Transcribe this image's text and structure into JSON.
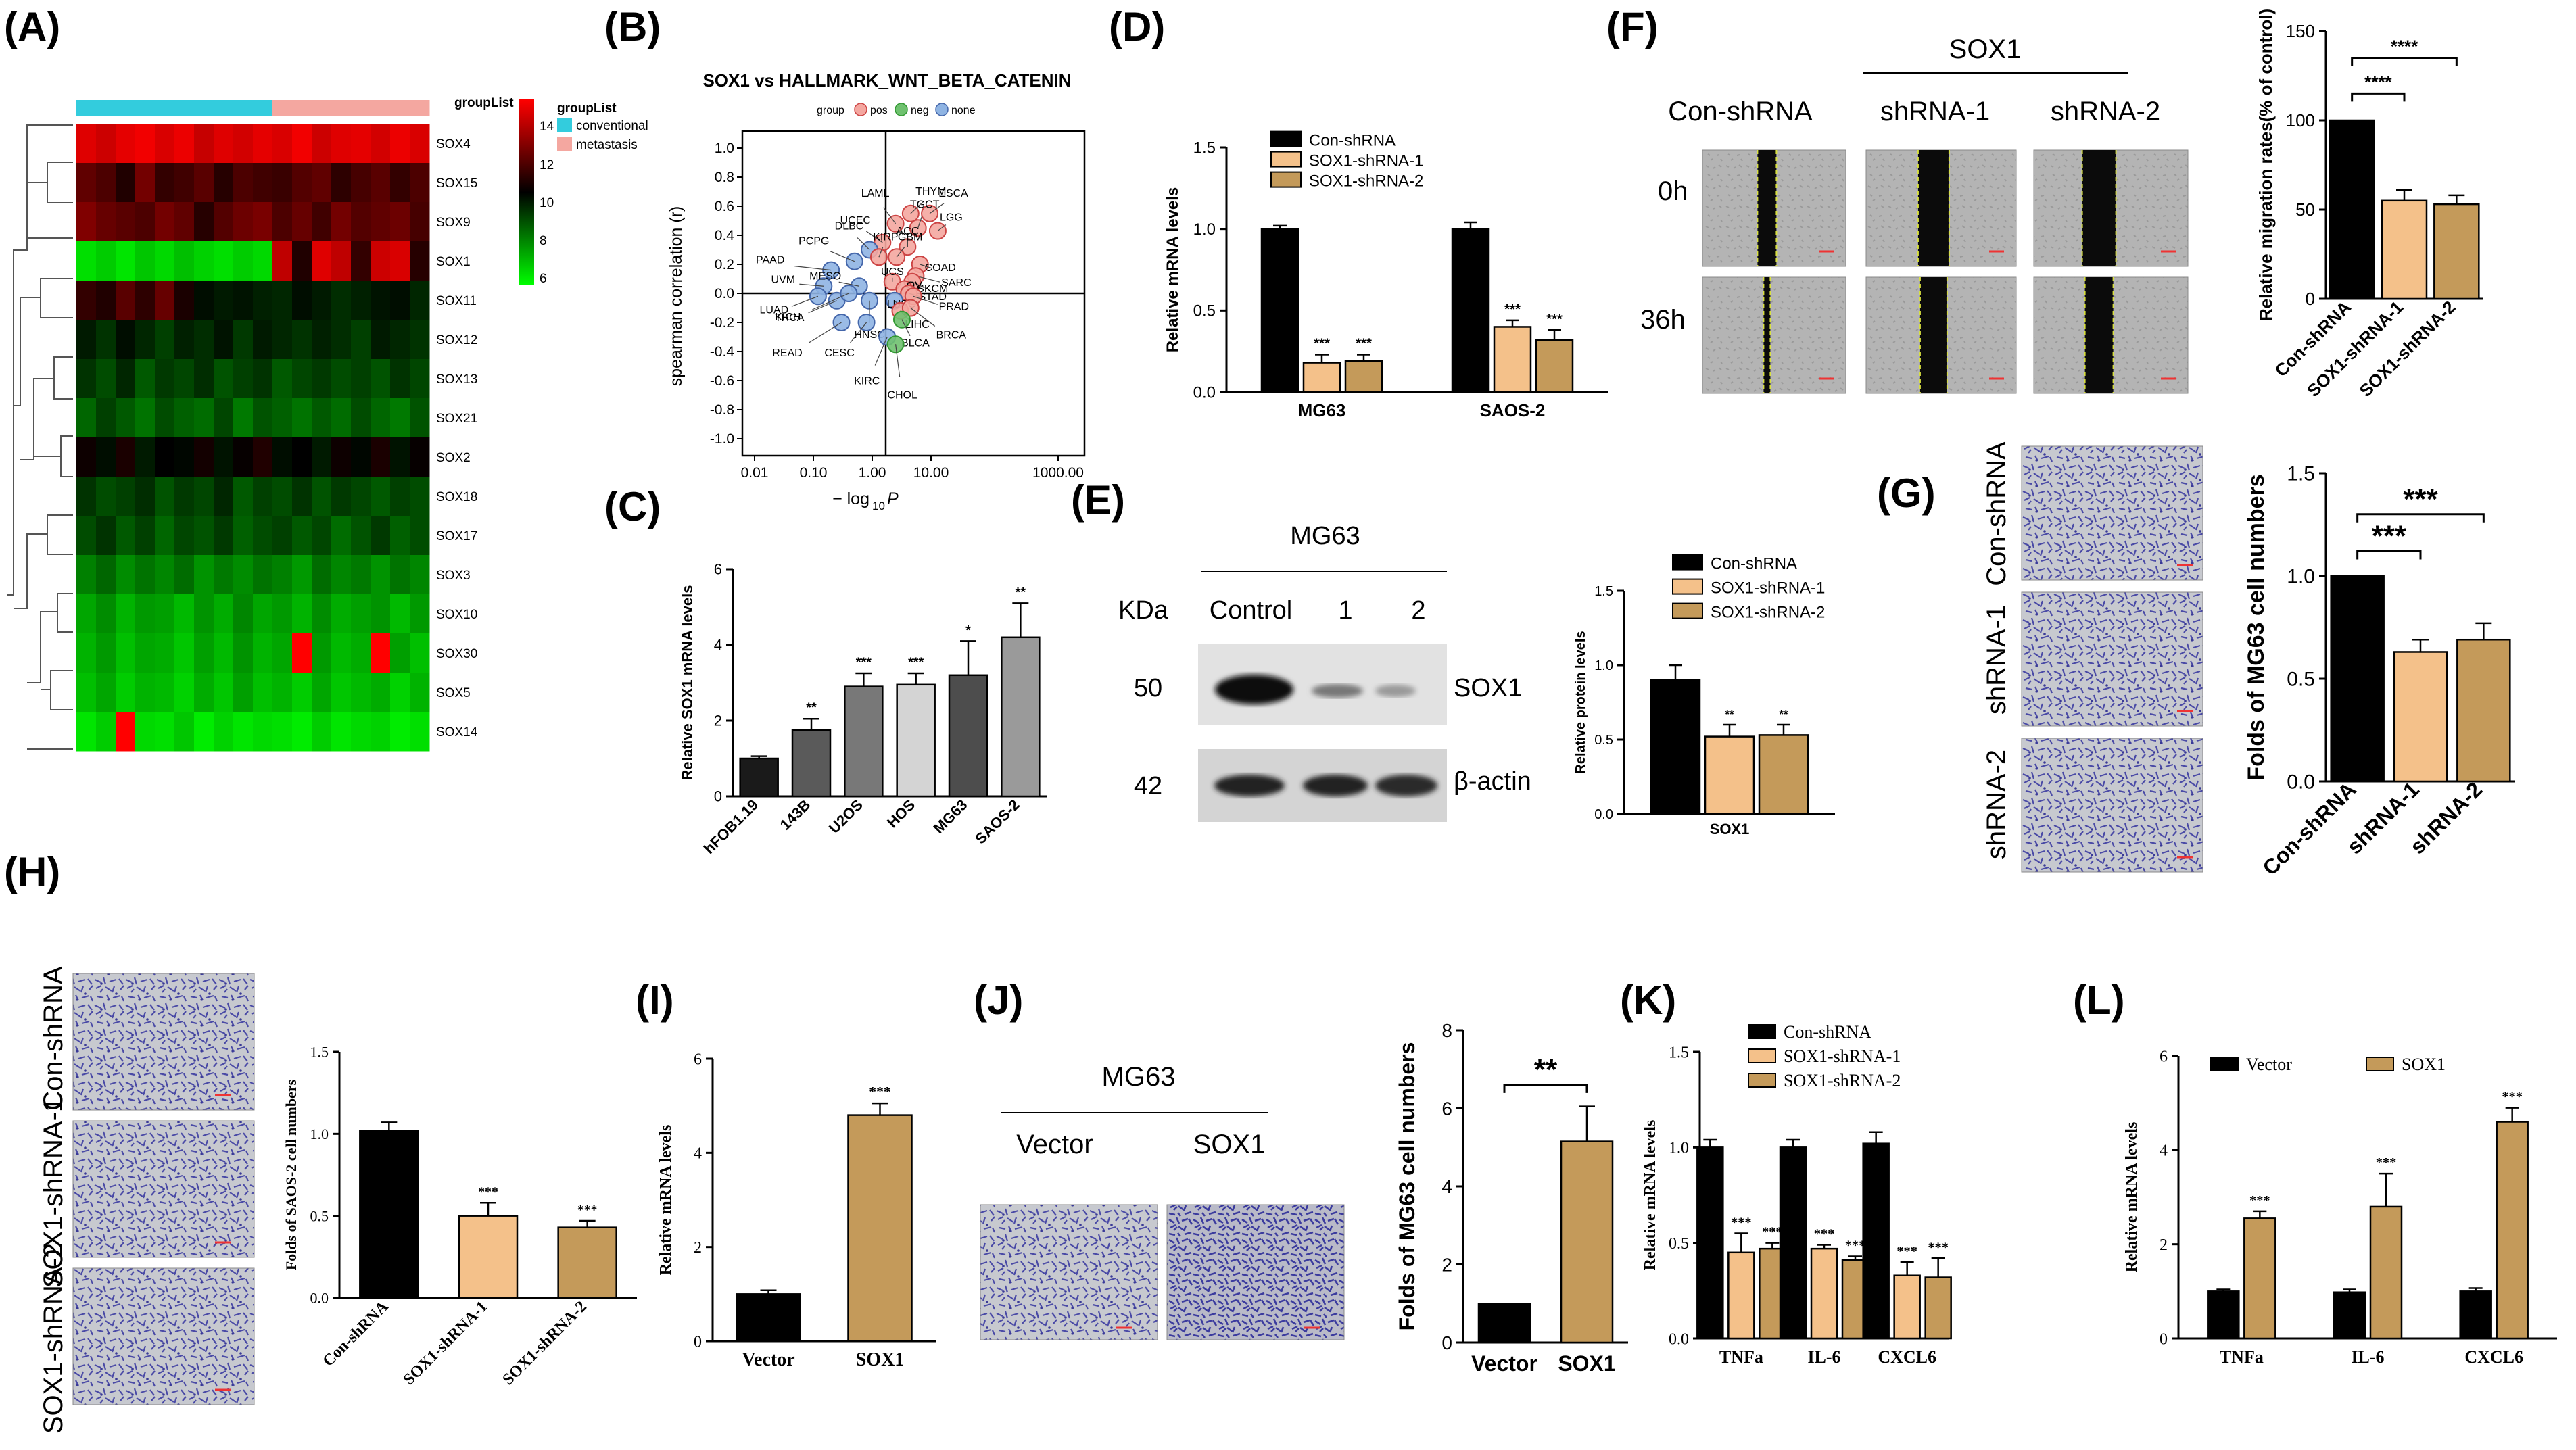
{
  "panels": {
    "A": {
      "label": "(A)"
    },
    "B": {
      "label": "(B)"
    },
    "C": {
      "label": "(C)"
    },
    "D": {
      "label": "(D)"
    },
    "E": {
      "label": "(E)"
    },
    "F": {
      "label": "(F)"
    },
    "G": {
      "label": "(G)"
    },
    "H": {
      "label": "(H)"
    },
    "I": {
      "label": "(I)"
    },
    "J": {
      "label": "(J)"
    },
    "K": {
      "label": "(K)"
    },
    "L": {
      "label": "(L)"
    }
  },
  "heatmap": {
    "group_title": "groupList",
    "legend_title": "groupList",
    "legend_conventional": "conventional",
    "legend_metastasis": "metastasis",
    "colors": {
      "low": "#00ff00",
      "mid": "#000000",
      "high": "#ff0000",
      "conventional": "#33ccdd",
      "metastasis": "#f4a7a0"
    },
    "scale_ticks": [
      "14",
      "12",
      "10",
      "8",
      "6"
    ],
    "rows": [
      "SOX4",
      "SOX15",
      "SOX9",
      "SOX1",
      "SOX11",
      "SOX12",
      "SOX13",
      "SOX21",
      "SOX2",
      "SOX18",
      "SOX17",
      "SOX3",
      "SOX10",
      "SOX30",
      "SOX5",
      "SOX14"
    ],
    "n_conventional": 10,
    "n_metastasis": 8,
    "matrix": [
      [
        13.5,
        13.2,
        13.6,
        13.8,
        13.4,
        13.7,
        13.1,
        13.5,
        13.3,
        13.6,
        13.4,
        13.8,
        13.2,
        13.5,
        13.6,
        13.3,
        13.7,
        13.4
      ],
      [
        11.5,
        11.2,
        10.5,
        11.8,
        10.8,
        11.0,
        11.4,
        10.6,
        11.2,
        11.0,
        10.9,
        11.3,
        11.5,
        10.7,
        11.1,
        11.4,
        10.8,
        11.2
      ],
      [
        12.0,
        11.6,
        11.4,
        11.2,
        11.8,
        11.5,
        10.6,
        11.3,
        11.7,
        11.9,
        11.2,
        11.6,
        11.0,
        11.8,
        11.3,
        11.5,
        11.7,
        11.1
      ],
      [
        6.5,
        6.8,
        6.4,
        6.9,
        6.6,
        7.0,
        6.7,
        6.5,
        6.8,
        6.6,
        13.0,
        10.5,
        13.5,
        13.0,
        10.8,
        13.2,
        13.4,
        10.6
      ],
      [
        10.8,
        10.5,
        11.4,
        10.7,
        11.6,
        10.4,
        9.8,
        9.6,
        9.7,
        9.5,
        9.4,
        9.8,
        9.6,
        9.3,
        9.5,
        9.7,
        9.8,
        9.4
      ],
      [
        9.6,
        9.2,
        9.8,
        9.4,
        9.0,
        9.5,
        9.3,
        9.7,
        9.1,
        9.6,
        9.4,
        9.2,
        9.5,
        9.3,
        9.0,
        9.6,
        9.4,
        9.2
      ],
      [
        9.2,
        8.8,
        9.4,
        8.6,
        9.1,
        8.9,
        9.3,
        8.7,
        9.0,
        9.2,
        8.6,
        8.9,
        9.1,
        8.8,
        9.0,
        8.7,
        9.2,
        8.9
      ],
      [
        8.4,
        9.0,
        8.6,
        8.2,
        8.8,
        8.5,
        8.3,
        8.9,
        8.1,
        8.7,
        8.5,
        8.2,
        8.6,
        8.3,
        8.8,
        8.4,
        8.1,
        8.7
      ],
      [
        10.2,
        9.8,
        10.4,
        9.6,
        10.0,
        9.9,
        10.3,
        9.7,
        10.1,
        10.5,
        9.8,
        10.0,
        9.6,
        10.2,
        9.9,
        10.4,
        9.7,
        10.1
      ],
      [
        9.2,
        8.8,
        9.0,
        9.3,
        8.7,
        9.1,
        8.9,
        9.4,
        8.6,
        9.0,
        8.8,
        9.2,
        8.7,
        9.1,
        8.9,
        8.6,
        9.0,
        8.8
      ],
      [
        8.8,
        9.2,
        8.6,
        9.0,
        8.4,
        8.9,
        8.7,
        9.1,
        8.5,
        8.8,
        9.0,
        8.6,
        8.9,
        8.3,
        8.7,
        9.1,
        8.5,
        8.8
      ],
      [
        8.0,
        8.4,
        7.8,
        8.2,
        7.9,
        8.3,
        7.7,
        8.1,
        7.8,
        8.2,
        8.0,
        7.6,
        8.3,
        7.9,
        8.1,
        7.7,
        8.2,
        7.9
      ],
      [
        7.4,
        7.8,
        7.2,
        7.6,
        7.5,
        7.1,
        7.7,
        7.3,
        7.9,
        7.4,
        7.6,
        7.2,
        7.8,
        7.3,
        7.5,
        7.7,
        7.1,
        7.6
      ],
      [
        7.2,
        7.6,
        7.0,
        7.4,
        7.3,
        6.9,
        7.5,
        7.1,
        7.7,
        7.2,
        7.4,
        14.5,
        7.6,
        7.1,
        7.3,
        14.5,
        7.5,
        7.0
      ],
      [
        7.0,
        7.4,
        6.8,
        7.2,
        7.1,
        6.7,
        7.3,
        6.9,
        7.5,
        7.0,
        7.2,
        6.8,
        7.4,
        6.9,
        7.1,
        7.3,
        6.7,
        7.2
      ],
      [
        6.4,
        6.8,
        14.5,
        6.6,
        6.5,
        6.9,
        6.3,
        6.7,
        6.4,
        6.6,
        6.5,
        6.3,
        6.8,
        6.4,
        6.6,
        6.7,
        6.3,
        6.5
      ]
    ]
  },
  "scatterB": {
    "title": "SOX1 vs HALLMARK_WNT_BETA_CATENIN",
    "legend_group": "group",
    "legend_pos": "pos",
    "legend_neg": "neg",
    "legend_none": "none",
    "ylabel": "spearman correlation (r)",
    "xlabel": "− log",
    "xlabel_sub": "10",
    "xlabel_p": "P",
    "yticks": [
      "1.0",
      "0.8",
      "0.6",
      "0.4",
      "0.2",
      "0.0",
      "-0.2",
      "-0.4",
      "-0.6",
      "-0.8",
      "-1.0"
    ],
    "xticks": [
      "0.01",
      "0.10",
      "1.00",
      "10.00",
      "1000.00"
    ],
    "colors": {
      "pos": "#f4a7a0",
      "neg": "#6fc16f",
      "none": "#8fb4e3"
    },
    "points": [
      {
        "name": "THYM",
        "x": 4.5,
        "r": 0.55,
        "g": "pos"
      },
      {
        "name": "ESCA",
        "x": 9.5,
        "r": 0.55,
        "g": "pos"
      },
      {
        "name": "LAML",
        "x": 2.5,
        "r": 0.48,
        "g": "pos"
      },
      {
        "name": "TGCT",
        "x": 6.0,
        "r": 0.45,
        "g": "pos"
      },
      {
        "name": "LGG",
        "x": 13.0,
        "r": 0.43,
        "g": "pos"
      },
      {
        "name": "UCEC",
        "x": 1.5,
        "r": 0.35,
        "g": "pos"
      },
      {
        "name": "ACC",
        "x": 4.0,
        "r": 0.32,
        "g": "pos"
      },
      {
        "name": "DLBC",
        "x": 0.9,
        "r": 0.3,
        "g": "none"
      },
      {
        "name": "KIRP",
        "x": 1.3,
        "r": 0.25,
        "g": "pos"
      },
      {
        "name": "GBM",
        "x": 2.6,
        "r": 0.25,
        "g": "pos"
      },
      {
        "name": "PCPG",
        "x": 0.5,
        "r": 0.22,
        "g": "none"
      },
      {
        "name": "COAD",
        "x": 6.5,
        "r": 0.2,
        "g": "pos"
      },
      {
        "name": "PAAD",
        "x": 0.2,
        "r": 0.16,
        "g": "none"
      },
      {
        "name": "SARC",
        "x": 5.5,
        "r": 0.12,
        "g": "pos"
      },
      {
        "name": "UCS",
        "x": 2.2,
        "r": 0.08,
        "g": "pos"
      },
      {
        "name": "SKCM",
        "x": 4.8,
        "r": 0.08,
        "g": "pos"
      },
      {
        "name": "UVM",
        "x": 0.15,
        "r": 0.05,
        "g": "none"
      },
      {
        "name": "MESO",
        "x": 0.6,
        "r": 0.05,
        "g": "none"
      },
      {
        "name": "OV",
        "x": 3.5,
        "r": 0.03,
        "g": "pos"
      },
      {
        "name": "STAD",
        "x": 4.2,
        "r": 0.0,
        "g": "pos"
      },
      {
        "name": "PRAD",
        "x": 5.0,
        "r": -0.02,
        "g": "pos"
      },
      {
        "name": "LUAD",
        "x": 0.12,
        "r": -0.02,
        "g": "none"
      },
      {
        "name": "LUSC",
        "x": 2.4,
        "r": -0.05,
        "g": "none"
      },
      {
        "name": "THCA",
        "x": 0.25,
        "r": -0.05,
        "g": "none"
      },
      {
        "name": "KICH",
        "x": 0.4,
        "r": 0.0,
        "g": "none"
      },
      {
        "name": "HNSC",
        "x": 0.9,
        "r": -0.05,
        "g": "none"
      },
      {
        "name": "LIHC",
        "x": 3.0,
        "r": -0.12,
        "g": "pos"
      },
      {
        "name": "BRCA",
        "x": 4.5,
        "r": -0.1,
        "g": "pos"
      },
      {
        "name": "READ",
        "x": 0.3,
        "r": -0.2,
        "g": "none"
      },
      {
        "name": "CESC",
        "x": 0.8,
        "r": -0.2,
        "g": "none"
      },
      {
        "name": "BLCA",
        "x": 3.2,
        "r": -0.18,
        "g": "neg"
      },
      {
        "name": "KIRC",
        "x": 1.8,
        "r": -0.3,
        "g": "none"
      },
      {
        "name": "CHOL",
        "x": 2.5,
        "r": -0.35,
        "g": "neg"
      }
    ]
  },
  "chart_data": [
    {
      "id": "C",
      "type": "bar",
      "ylabel": "Relative SOX1 mRNA levels",
      "ylim": [
        0,
        6
      ],
      "yticks": [
        "0",
        "2",
        "4",
        "6"
      ],
      "categories": [
        "hFOB1.19",
        "143B",
        "U2OS",
        "HOS",
        "MG63",
        "SAOS-2"
      ],
      "values": [
        1.0,
        1.75,
        2.9,
        2.95,
        3.2,
        4.2
      ],
      "errors": [
        0.06,
        0.3,
        0.35,
        0.3,
        0.9,
        0.9
      ],
      "significance": [
        "",
        "**",
        "***",
        "***",
        "*",
        "**"
      ],
      "colors": [
        "#1a1a1a",
        "#5a5a5a",
        "#787878",
        "#d4d4d4",
        "#4d4d4d",
        "#9a9a9a"
      ]
    },
    {
      "id": "D",
      "type": "bar",
      "ylabel": "Relative mRNA levels",
      "ylim": [
        0,
        1.5
      ],
      "yticks": [
        "0.0",
        "0.5",
        "1.0",
        "1.5"
      ],
      "categories": [
        "MG63",
        "SAOS-2"
      ],
      "series": [
        {
          "name": "Con-shRNA",
          "values": [
            1.0,
            1.0
          ],
          "errors": [
            0.02,
            0.04
          ],
          "sig": [
            "",
            ""
          ],
          "color": "#000000"
        },
        {
          "name": "SOX1-shRNA-1",
          "values": [
            0.18,
            0.4
          ],
          "errors": [
            0.05,
            0.04
          ],
          "sig": [
            "***",
            "***"
          ],
          "color": "#f4c18a"
        },
        {
          "name": "SOX1-shRNA-2",
          "values": [
            0.19,
            0.32
          ],
          "errors": [
            0.04,
            0.06
          ],
          "sig": [
            "***",
            "***"
          ],
          "color": "#c49a5a"
        }
      ]
    },
    {
      "id": "E",
      "type": "bar",
      "ylabel": "Relative protein levels",
      "ylim": [
        0,
        1.5
      ],
      "yticks": [
        "0.0",
        "0.5",
        "1.0",
        "1.5"
      ],
      "categories": [
        "SOX1"
      ],
      "series": [
        {
          "name": "Con-shRNA",
          "values": [
            0.9
          ],
          "errors": [
            0.1
          ],
          "sig": [
            ""
          ],
          "color": "#000000"
        },
        {
          "name": "SOX1-shRNA-1",
          "values": [
            0.52
          ],
          "errors": [
            0.08
          ],
          "sig": [
            "**"
          ],
          "color": "#f4c18a"
        },
        {
          "name": "SOX1-shRNA-2",
          "values": [
            0.53
          ],
          "errors": [
            0.07
          ],
          "sig": [
            "**"
          ],
          "color": "#c49a5a"
        }
      ]
    },
    {
      "id": "F",
      "type": "bar",
      "ylabel": "Relative migration rates(% of control)",
      "ylim": [
        0,
        150
      ],
      "yticks": [
        "0",
        "50",
        "100",
        "150"
      ],
      "categories": [
        "Con-shRNA",
        "SOX1-shRNA-1",
        "SOX1-shRNA-2"
      ],
      "values": [
        100,
        55,
        53
      ],
      "errors": [
        0,
        6,
        5
      ],
      "colors": [
        "#000000",
        "#f4c18a",
        "#c49a5a"
      ],
      "brackets": [
        "****",
        "****"
      ]
    },
    {
      "id": "G",
      "type": "bar",
      "ylabel": "Folds of MG63 cell numbers",
      "ylim": [
        0,
        1.5
      ],
      "yticks": [
        "0.0",
        "0.5",
        "1.0",
        "1.5"
      ],
      "categories": [
        "Con-shRNA",
        "shRNA-1",
        "shRNA-2"
      ],
      "values": [
        1.0,
        0.63,
        0.69
      ],
      "errors": [
        0,
        0.06,
        0.08
      ],
      "colors": [
        "#000000",
        "#f4c18a",
        "#c49a5a"
      ],
      "brackets": [
        "***",
        "***"
      ]
    },
    {
      "id": "H",
      "type": "bar",
      "ylabel": "Folds of SAOS-2 cell numbers",
      "ylim": [
        0,
        1.5
      ],
      "yticks": [
        "0.0",
        "0.5",
        "1.0",
        "1.5"
      ],
      "categories": [
        "Con-shRNA",
        "SOX1-shRNA-1",
        "SOX1-shRNA-2"
      ],
      "values": [
        1.02,
        0.5,
        0.43
      ],
      "errors": [
        0.05,
        0.08,
        0.04
      ],
      "significance": [
        "",
        "***",
        "***"
      ],
      "colors": [
        "#000000",
        "#f4c18a",
        "#c49a5a"
      ]
    },
    {
      "id": "I",
      "type": "bar",
      "ylabel": "Relative mRNA levels",
      "ylim": [
        0,
        6
      ],
      "yticks": [
        "0",
        "2",
        "4",
        "6"
      ],
      "categories": [
        "Vector",
        "SOX1"
      ],
      "values": [
        1.0,
        4.8
      ],
      "errors": [
        0.08,
        0.25
      ],
      "significance": [
        "",
        "***"
      ],
      "colors": [
        "#000000",
        "#c49a5a"
      ]
    },
    {
      "id": "J",
      "type": "bar",
      "ylabel": "Folds of MG63 cell numbers",
      "ylim": [
        0,
        8
      ],
      "yticks": [
        "0",
        "2",
        "4",
        "6",
        "8"
      ],
      "categories": [
        "Vector",
        "SOX1"
      ],
      "values": [
        1.0,
        5.15
      ],
      "errors": [
        0,
        0.9
      ],
      "colors": [
        "#000000",
        "#c49a5a"
      ],
      "brackets": [
        "**"
      ]
    },
    {
      "id": "K",
      "type": "bar",
      "ylabel": "Relative mRNA levels",
      "ylim": [
        0,
        1.5
      ],
      "yticks": [
        "0.0",
        "0.5",
        "1.0",
        "1.5"
      ],
      "categories": [
        "TNFa",
        "IL-6",
        "CXCL6"
      ],
      "series": [
        {
          "name": "Con-shRNA",
          "values": [
            1.0,
            1.0,
            1.02
          ],
          "errors": [
            0.04,
            0.04,
            0.06
          ],
          "sig": [
            "",
            "",
            ""
          ],
          "color": "#000000"
        },
        {
          "name": "SOX1-shRNA-1",
          "values": [
            0.45,
            0.47,
            0.33
          ],
          "errors": [
            0.1,
            0.02,
            0.07
          ],
          "sig": [
            "***",
            "***",
            "***"
          ],
          "color": "#f4c18a"
        },
        {
          "name": "SOX1-shRNA-2",
          "values": [
            0.47,
            0.41,
            0.32
          ],
          "errors": [
            0.03,
            0.02,
            0.1
          ],
          "sig": [
            "***",
            "***",
            "***"
          ],
          "color": "#c49a5a"
        }
      ]
    },
    {
      "id": "L",
      "type": "bar",
      "ylabel": "Relative mRNA levels",
      "ylim": [
        0,
        6
      ],
      "yticks": [
        "0",
        "2",
        "4",
        "6"
      ],
      "categories": [
        "TNFa",
        "IL-6",
        "CXCL6"
      ],
      "series": [
        {
          "name": "Vector",
          "values": [
            1.0,
            0.98,
            1.0
          ],
          "errors": [
            0.04,
            0.06,
            0.07
          ],
          "sig": [
            "",
            "",
            ""
          ],
          "color": "#000000"
        },
        {
          "name": "SOX1",
          "values": [
            2.55,
            2.8,
            4.6
          ],
          "errors": [
            0.15,
            0.7,
            0.3
          ],
          "sig": [
            "***",
            "***",
            "***"
          ],
          "color": "#c49a5a"
        }
      ]
    }
  ],
  "blotE": {
    "cell_line": "MG63",
    "kda_label": "KDa",
    "lanes": [
      "Control",
      "1",
      "2"
    ],
    "bands": [
      {
        "kda": "50",
        "name": "SOX1"
      },
      {
        "kda": "42",
        "name": "β-actin"
      }
    ]
  },
  "imagesF": {
    "group": "SOX1",
    "cols": [
      "Con-shRNA",
      "shRNA-1",
      "shRNA-2"
    ],
    "rows": [
      "0h",
      "36h"
    ]
  },
  "imagesG": {
    "rows": [
      "Con-shRNA",
      "shRNA-1",
      "shRNA-2"
    ]
  },
  "imagesH": {
    "rows": [
      "Con-shRNA",
      "SOX1-shRNA-1",
      "SOX1-shRNA-2"
    ]
  },
  "imagesJ": {
    "cell_line": "MG63",
    "cols": [
      "Vector",
      "SOX1"
    ]
  }
}
